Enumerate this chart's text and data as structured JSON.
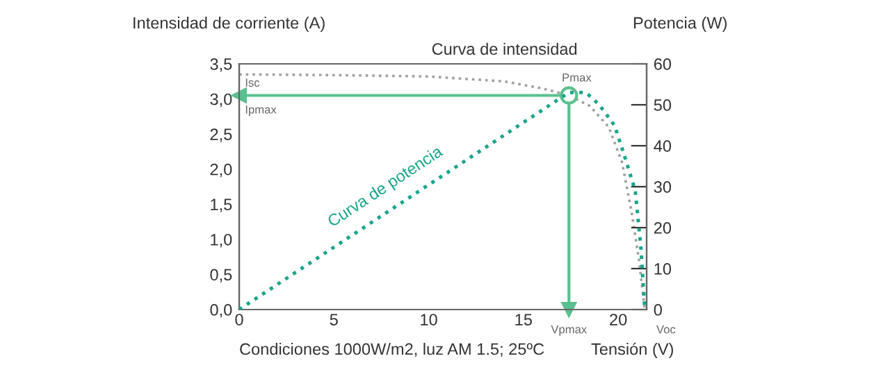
{
  "chart_data": {
    "type": "line",
    "xlabel": "Tensión (V)",
    "ylabel": "Intensidad de corriente (A)",
    "y2label": "Potencia (W)",
    "xlim": [
      0,
      21.5
    ],
    "xticks": [
      0,
      5,
      10,
      15,
      20
    ],
    "ylim": [
      0,
      3.5
    ],
    "yticks": [
      {
        "value": 0,
        "label": "0,0"
      },
      {
        "value": 0.5,
        "label": "0,5"
      },
      {
        "value": 1,
        "label": "1,0"
      },
      {
        "value": 1.5,
        "label": "1,5"
      },
      {
        "value": 2,
        "label": "2,0"
      },
      {
        "value": 2.5,
        "label": "2,5"
      },
      {
        "value": 3,
        "label": "3,0"
      },
      {
        "value": 3.5,
        "label": "3,5"
      }
    ],
    "y2lim": [
      0,
      60
    ],
    "y2ticks": [
      0,
      10,
      20,
      30,
      40,
      50,
      60
    ],
    "grid": false,
    "line_style": "dotted",
    "marker": "none",
    "series": [
      {
        "name": "Curva de intensidad",
        "color": "#a0a0a0",
        "x": [
          0,
          5,
          10,
          14,
          16,
          17.4,
          18.5,
          19.5,
          20.2,
          20.7,
          21.1,
          21.4
        ],
        "values": [
          3.35,
          3.34,
          3.32,
          3.25,
          3.15,
          3.05,
          2.9,
          2.6,
          2.1,
          1.4,
          0.7,
          0
        ]
      },
      {
        "name": "Curva de potencia",
        "color": "#1aa58a",
        "axis": "y2",
        "x": [
          0,
          17.4,
          18.3,
          19,
          19.8,
          20.3,
          20.9,
          21.2,
          21.4
        ],
        "values": [
          0,
          53,
          53,
          50,
          45,
          38,
          29,
          15,
          0
        ]
      },
      {
        "type": "scatter",
        "marker": "circle",
        "color": "#5cbf8f",
        "x": [
          17.4
        ],
        "values": [
          3.05
        ]
      }
    ],
    "ref_lines": [
      {
        "axis": "y",
        "value": 3.05,
        "color": "#5cbf8f"
      },
      {
        "axis": "x",
        "value": 17.4,
        "color": "#5cbf8f"
      }
    ],
    "annotations": [
      {
        "text": "Isc",
        "x": 0,
        "y": 3.35
      },
      {
        "text": "Ipmax",
        "x": 0,
        "y": 3.05
      },
      {
        "text": "Pmax",
        "x": 17.4,
        "y": 3.05
      },
      {
        "text": "Vpmax",
        "x": 17.4,
        "y": 0
      },
      {
        "text": "Voc",
        "x": 21.4,
        "y": 0
      },
      "Condiciones 1000W/m2, luz AM 1.5; 25ºC"
    ]
  }
}
